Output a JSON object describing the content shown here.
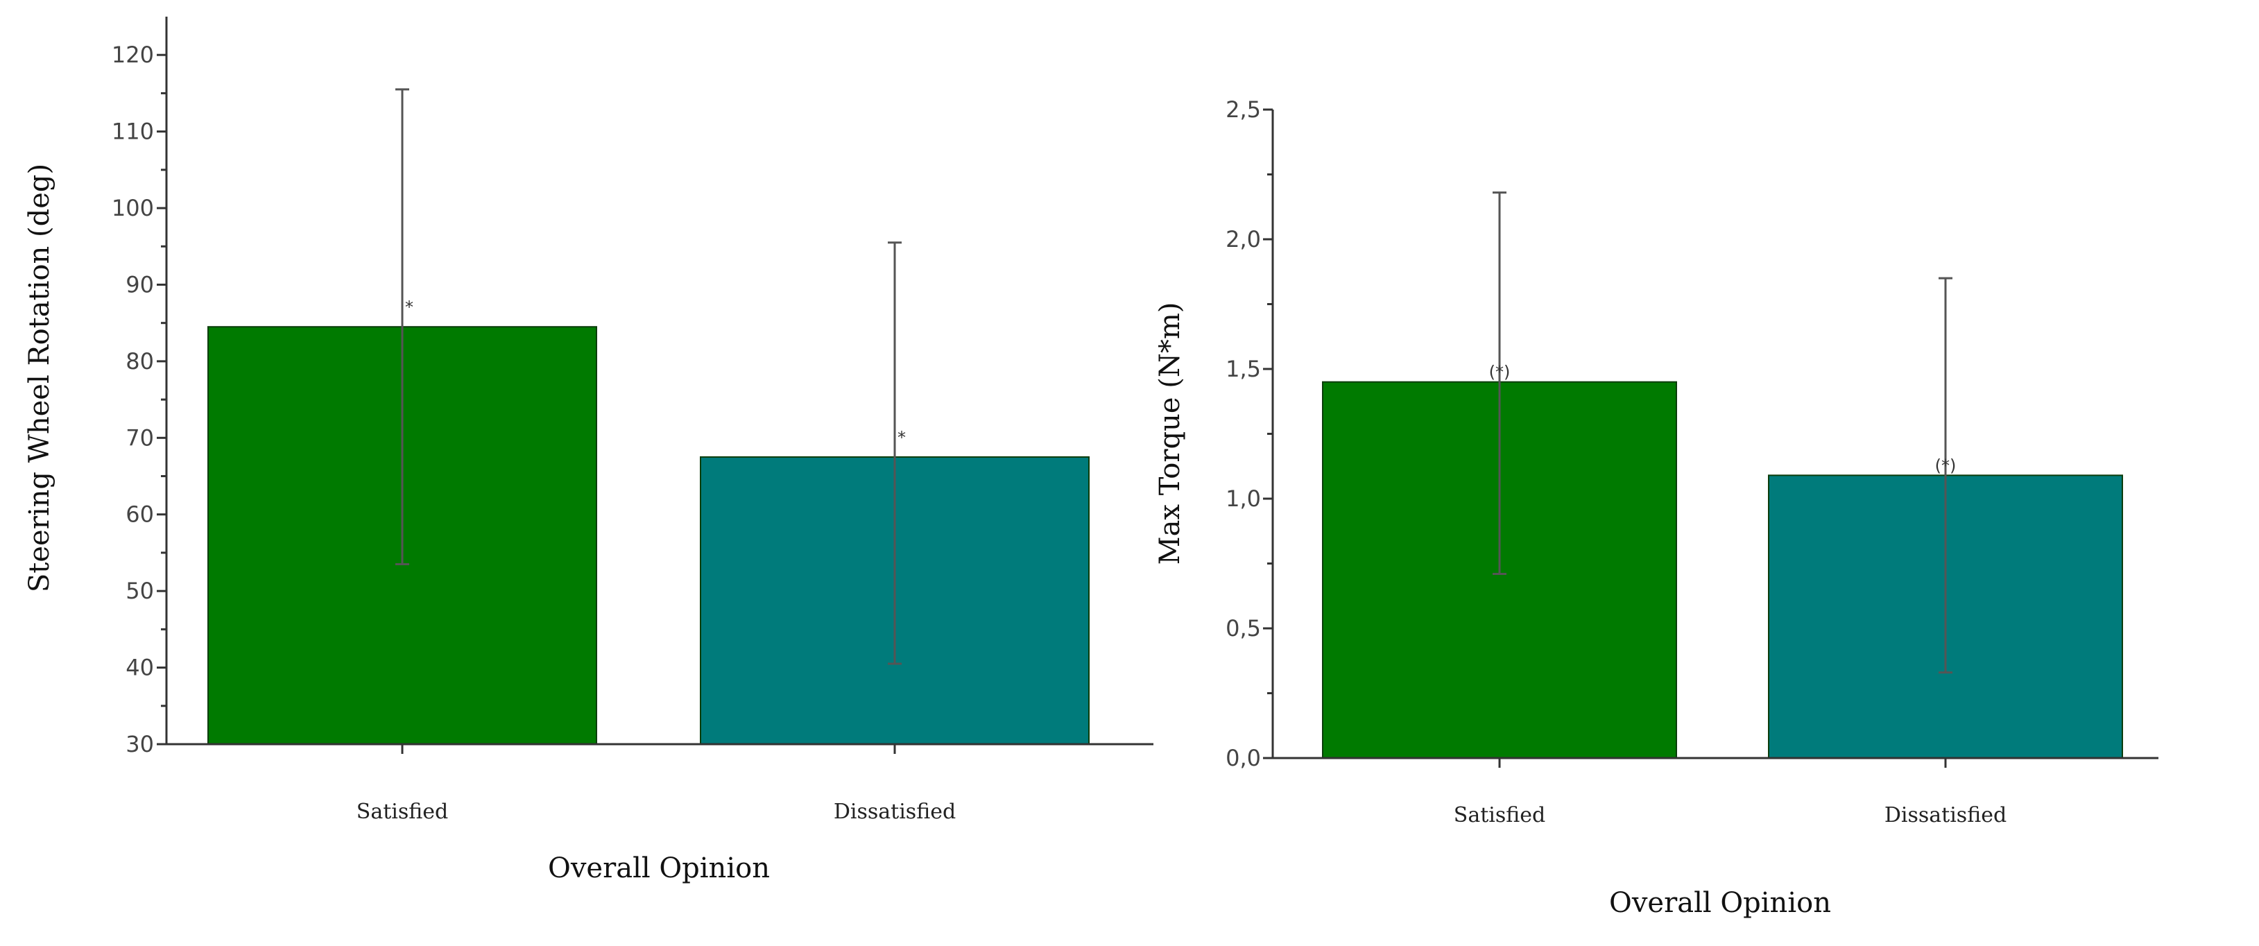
{
  "chart_data": [
    {
      "type": "bar",
      "title": "",
      "xlabel": "Overall Opinion",
      "ylabel": "Steering Wheel Rotation (deg)",
      "ylim": [
        30,
        125
      ],
      "yticks": [
        30,
        40,
        50,
        60,
        70,
        80,
        90,
        100,
        110,
        120
      ],
      "ytick_labels": [
        "30",
        "40",
        "50",
        "60",
        "70",
        "80",
        "90",
        "100",
        "110",
        "120"
      ],
      "categories": [
        "Satisfied",
        "Dissatisfied"
      ],
      "values": [
        84.5,
        67.5
      ],
      "error_low": [
        53.5,
        40.5
      ],
      "error_high": [
        115.5,
        95.5
      ],
      "marker_labels": [
        "*",
        "*"
      ],
      "colors": [
        "#007a00",
        "#007b7b"
      ],
      "grid": false
    },
    {
      "type": "bar",
      "title": "",
      "xlabel": "Overall Opinion",
      "ylabel": "Max Torque (N*m)",
      "ylim": [
        0,
        2.5
      ],
      "yticks": [
        0,
        0.5,
        1,
        1.5,
        2,
        2.5
      ],
      "ytick_labels": [
        "0,0",
        "0,5",
        "1,0",
        "1,5",
        "2,0",
        "2,5"
      ],
      "categories": [
        "Satisfied",
        "Dissatisfied"
      ],
      "values": [
        1.45,
        1.09
      ],
      "error_low": [
        0.71,
        0.33
      ],
      "error_high": [
        2.18,
        1.85
      ],
      "marker_labels": [
        "(*)",
        "(*)"
      ],
      "colors": [
        "#007a00",
        "#007b7b"
      ],
      "grid": false
    }
  ]
}
